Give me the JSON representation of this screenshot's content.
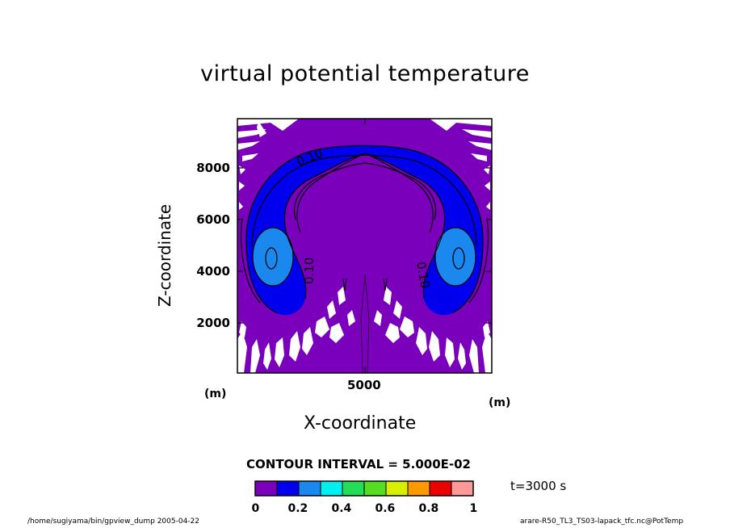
{
  "chart_data": {
    "type": "contour",
    "title": "virtual potential temperature",
    "xlabel": "X-coordinate",
    "ylabel": "Z-coordinate",
    "x_unit": "(m)",
    "y_unit": "(m)",
    "xlim": [
      0,
      10000
    ],
    "ylim": [
      0,
      10000
    ],
    "x_ticks": [
      5000
    ],
    "y_ticks": [
      2000,
      4000,
      6000,
      8000
    ],
    "contour_interval_text": "CONTOUR INTERVAL = 5.000E-02",
    "contour_labels": [
      "0.10",
      "0.10",
      "0.10"
    ],
    "levels": [
      0,
      0.1,
      0.2,
      0.3,
      0.4,
      0.5,
      0.6,
      0.7,
      0.8,
      0.9,
      1.0
    ],
    "colorbar_ticks": [
      "0",
      "0.2",
      "0.4",
      "0.6",
      "0.8",
      "1"
    ],
    "colorbar_colors": [
      "#7a00bb",
      "#0000ee",
      "#1a88ee",
      "#00f0f0",
      "#22dd55",
      "#55dd22",
      "#d8f000",
      "#ff9900",
      "#ee0000",
      "#ff9999"
    ],
    "time_label": "t=3000 s"
  },
  "footer": {
    "left": "/home/sugiyama/bin/gpview_dump  2005-04-22",
    "right": "arare-R50_TL3_TS03-lapack_tfc.nc@PotTemp"
  }
}
